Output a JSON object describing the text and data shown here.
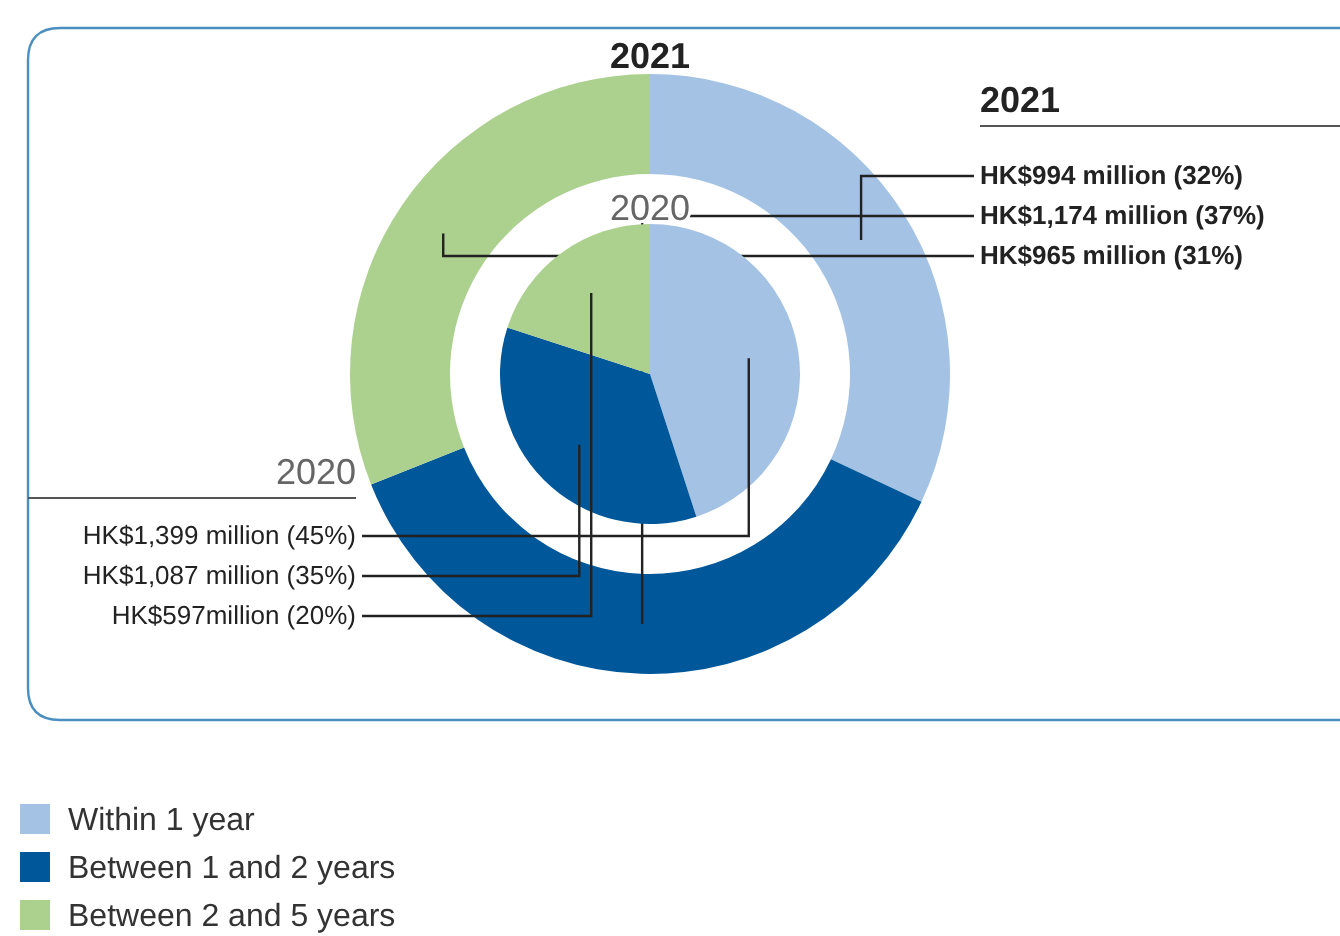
{
  "chart_data": [
    {
      "type": "donut",
      "title": "2021",
      "categories": [
        "Within 1 year",
        "Between 1 and 2 years",
        "Between 2 and 5 years"
      ],
      "values": [
        32,
        37,
        31
      ],
      "colors": [
        "#a4c2e4",
        "#00589a",
        "#acd08e"
      ],
      "value_labels": [
        "HK$994 million (32%)",
        "HK$1,174 million (37%)",
        "HK$965 million (31%)"
      ],
      "annotations": [
        "2021"
      ],
      "legend": "bottom"
    },
    {
      "type": "pie",
      "title": "2020",
      "categories": [
        null,
        null,
        null
      ],
      "values": [
        45,
        35,
        20
      ],
      "colors": [
        "#a4c2e4",
        "#00589a",
        "#acd08e"
      ],
      "value_labels": [
        "HK$1,399 million (45%)",
        "HK$1,087 million (35%)",
        "HK$597million (20%)"
      ],
      "annotations": [
        "2020"
      ]
    }
  ]
}
